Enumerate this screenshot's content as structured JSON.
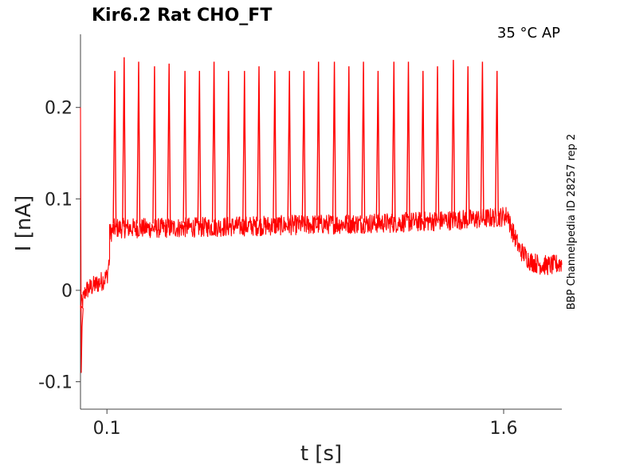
{
  "chart_data": {
    "type": "line",
    "title": "Kir6.2  Rat  CHO_FT",
    "conditions": "35 °C  AP",
    "side_label": "BBP Channelpedia ID 28257 rep 2",
    "xlabel": "t [s]",
    "ylabel": "I [nA]",
    "xlim": [
      0.0,
      1.82
    ],
    "ylim": [
      -0.13,
      0.28
    ],
    "x_ticks": [
      0.1,
      1.6
    ],
    "x_tick_labels": [
      "0.1",
      "1.6"
    ],
    "y_ticks": [
      -0.1,
      0,
      0.1,
      0.2
    ],
    "y_tick_labels": [
      "-0.1",
      "0",
      "0.1",
      "0.2"
    ],
    "grid": false,
    "series": [
      {
        "color": "#ff0000",
        "baseline_segments": [
          {
            "t": [
              0.0,
              0.02,
              0.05,
              0.08,
              0.1,
              0.11
            ],
            "i": [
              -0.02,
              0.0,
              0.005,
              0.01,
              0.015,
              0.035
            ]
          },
          {
            "t": [
              0.11,
              0.13,
              0.3,
              0.6,
              0.9,
              1.2,
              1.5,
              1.58,
              1.62
            ],
            "i": [
              0.062,
              0.068,
              0.068,
              0.07,
              0.072,
              0.074,
              0.078,
              0.08,
              0.082
            ]
          },
          {
            "t": [
              1.62,
              1.64,
              1.66,
              1.7,
              1.74,
              1.78,
              1.82
            ],
            "i": [
              0.075,
              0.06,
              0.045,
              0.032,
              0.028,
              0.027,
              0.03
            ]
          }
        ],
        "noise_amplitude": 0.022,
        "spike_times": [
          0.13,
          0.165,
          0.22,
          0.28,
          0.335,
          0.395,
          0.45,
          0.505,
          0.56,
          0.62,
          0.675,
          0.735,
          0.79,
          0.845,
          0.9,
          0.96,
          1.015,
          1.07,
          1.125,
          1.185,
          1.24,
          1.295,
          1.35,
          1.41,
          1.465,
          1.52,
          1.575
        ],
        "spike_peaks": [
          0.24,
          0.255,
          0.25,
          0.245,
          0.248,
          0.24,
          0.24,
          0.25,
          0.24,
          0.24,
          0.245,
          0.24,
          0.24,
          0.24,
          0.25,
          0.25,
          0.245,
          0.25,
          0.24,
          0.25,
          0.25,
          0.24,
          0.245,
          0.252,
          0.245,
          0.25,
          0.24
        ],
        "initial_transient": {
          "t": [
            0.0,
            0.003,
            0.006,
            0.01
          ],
          "i": [
            0.2,
            -0.09,
            -0.04,
            -0.02
          ]
        }
      }
    ]
  }
}
